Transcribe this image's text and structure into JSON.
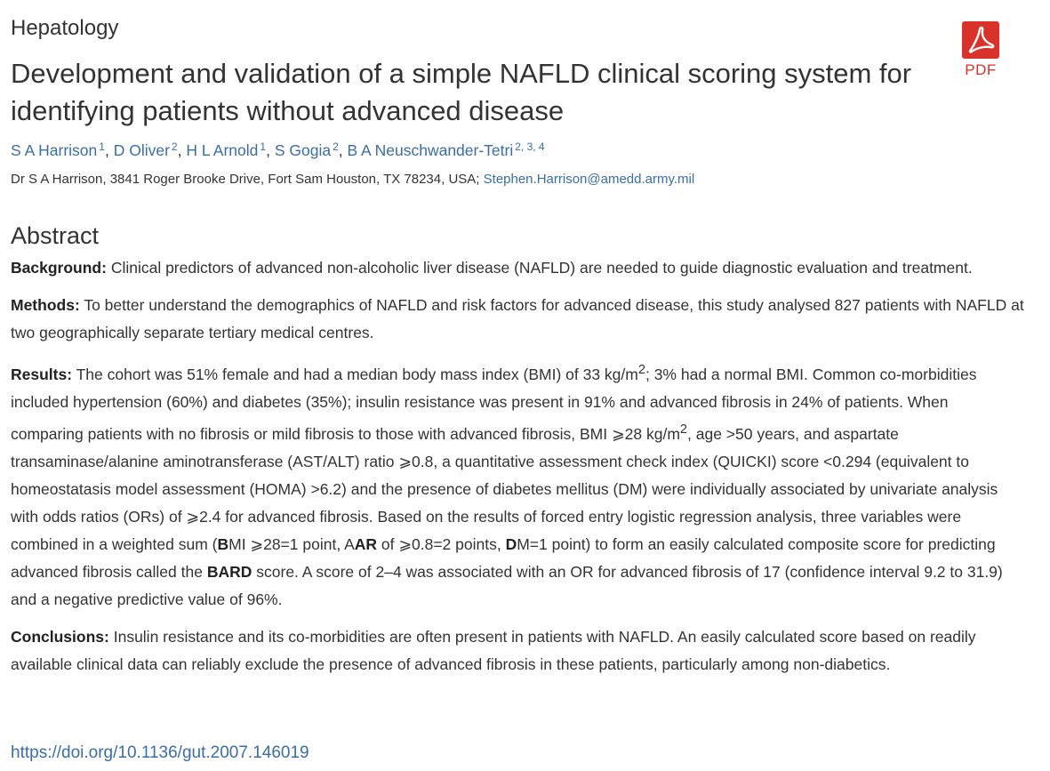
{
  "category": "Hepatology",
  "title": "Development and validation of a simple NAFLD clinical scoring system for identifying patients without advanced disease",
  "pdf_label": "PDF",
  "authors": [
    {
      "name": "S A Harrison",
      "aff": "1"
    },
    {
      "name": "D Oliver",
      "aff": "2"
    },
    {
      "name": "H L Arnold",
      "aff": "1"
    },
    {
      "name": "S Gogia",
      "aff": "2"
    },
    {
      "name": "B A Neuschwander-Tetri",
      "aff": "2, 3, 4"
    }
  ],
  "correspondence": {
    "text": "Dr S A Harrison, 3841 Roger Brooke Drive, Fort Sam Houston, TX 78234, USA;",
    "email": "Stephen.Harrison@amedd.army.mil"
  },
  "abstract": {
    "heading": "Abstract",
    "background_label": "Background:",
    "background_text": "Clinical predictors of advanced non-alcoholic liver disease (NAFLD) are needed to guide diagnostic evaluation and treatment.",
    "methods_label": "Methods:",
    "methods_text": "To better understand the demographics of NAFLD and risk factors for advanced disease, this study analysed 827 patients with NAFLD at two geographically separate tertiary medical centres.",
    "results_label": "Results:",
    "results_1": "The cohort was 51% female and had a median body mass index (BMI) of 33 kg/m",
    "results_2": "; 3% had a normal BMI. Common co-morbidities included hypertension (60%) and diabetes (35%); insulin resistance was present in 91% and advanced fibrosis in 24% of patients. When comparing patients with no fibrosis or mild fibrosis to those with advanced fibrosis, BMI ⩾28 kg/m",
    "results_3": ", age >50 years, and aspartate transaminase/alanine aminotransferase (AST/ALT) ratio ⩾0.8, a quantitative assessment check index (QUICKI) score <0.294 (equivalent to homeostatasis model assessment (HOMA) >6.2) and the presence of diabetes mellitus (DM) were individually associated by univariate analysis with odds ratios (ORs) of ⩾2.4 for advanced fibrosis. Based on the results of forced entry logistic regression analysis, three variables were combined in a weighted sum (",
    "results_b1": "B",
    "results_4": "MI ⩾28=1 point, A",
    "results_b2": "AR",
    "results_5": " of ⩾0.8=2 points, ",
    "results_b3": "D",
    "results_6": "M=1 point) to form an easily calculated composite score for predicting advanced fibrosis called the ",
    "results_b4": "BARD",
    "results_7": " score. A score of 2–4 was associated with an OR for advanced fibrosis of 17 (confidence interval 9.2 to 31.9) and a negative predictive value of 96%.",
    "superscript": "2",
    "conclusions_label": "Conclusions:",
    "conclusions_text": "Insulin resistance and its co-morbidities are often present in patients with NAFLD. An easily calculated score based on readily available clinical data can reliably exclude the presence of advanced fibrosis in these patients, particularly among non-diabetics."
  },
  "doi": "https://doi.org/10.1136/gut.2007.146019",
  "colors": {
    "link": "#3a6ea5",
    "pdf_red": "#d9322b",
    "text": "#333333"
  }
}
